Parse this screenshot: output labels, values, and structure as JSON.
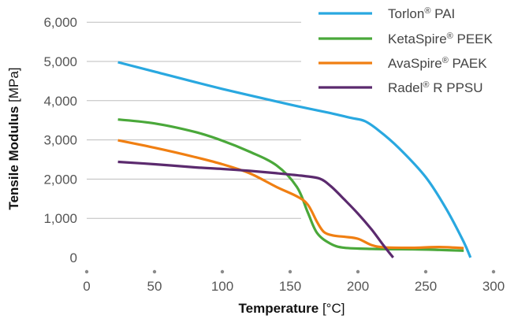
{
  "chart_data": {
    "type": "line",
    "title": "",
    "xlabel": {
      "bold": "Temperature",
      "unit": "[°C]"
    },
    "ylabel": {
      "bold": "Tensile Modulus",
      "unit": "[MPa]"
    },
    "xlim": [
      0,
      300
    ],
    "ylim": [
      0,
      6000
    ],
    "x_ticks": [
      "0",
      "50",
      "100",
      "150",
      "200",
      "250",
      "300"
    ],
    "y_ticks": [
      "0",
      "1,000",
      "2,000",
      "3,000",
      "4,000",
      "5,000",
      "6,000"
    ],
    "grid": "horizontal",
    "legend_position": "top-right",
    "series": [
      {
        "name": "Torlon® PAI",
        "brand": "Torlon",
        "grade": "PAI",
        "color": "#29a8e0",
        "points": [
          [
            23,
            4980
          ],
          [
            50,
            4740
          ],
          [
            100,
            4300
          ],
          [
            150,
            3900
          ],
          [
            180,
            3680
          ],
          [
            195,
            3560
          ],
          [
            205,
            3480
          ],
          [
            215,
            3250
          ],
          [
            230,
            2800
          ],
          [
            250,
            2050
          ],
          [
            265,
            1250
          ],
          [
            278,
            400
          ],
          [
            283,
            0
          ]
        ]
      },
      {
        "name": "KetaSpire® PEEK",
        "brand": "KetaSpire",
        "grade": "PEEK",
        "color": "#4aa83a",
        "points": [
          [
            23,
            3520
          ],
          [
            50,
            3420
          ],
          [
            80,
            3200
          ],
          [
            100,
            2980
          ],
          [
            120,
            2700
          ],
          [
            140,
            2350
          ],
          [
            155,
            1800
          ],
          [
            163,
            1150
          ],
          [
            170,
            620
          ],
          [
            180,
            350
          ],
          [
            190,
            250
          ],
          [
            210,
            220
          ],
          [
            240,
            210
          ],
          [
            260,
            195
          ],
          [
            278,
            175
          ]
        ]
      },
      {
        "name": "AvaSpire® PAEK",
        "brand": "AvaSpire",
        "grade": "PAEK",
        "color": "#f07f12",
        "points": [
          [
            23,
            2990
          ],
          [
            50,
            2800
          ],
          [
            80,
            2560
          ],
          [
            100,
            2380
          ],
          [
            120,
            2150
          ],
          [
            140,
            1800
          ],
          [
            155,
            1560
          ],
          [
            163,
            1350
          ],
          [
            170,
            900
          ],
          [
            175,
            650
          ],
          [
            182,
            560
          ],
          [
            190,
            530
          ],
          [
            200,
            480
          ],
          [
            210,
            320
          ],
          [
            220,
            260
          ],
          [
            240,
            250
          ],
          [
            260,
            270
          ],
          [
            278,
            240
          ]
        ]
      },
      {
        "name": "Radel® R PPSU",
        "brand": "Radel",
        "grade": "R PPSU",
        "color": "#5b2a6e",
        "points": [
          [
            23,
            2440
          ],
          [
            50,
            2380
          ],
          [
            80,
            2300
          ],
          [
            100,
            2260
          ],
          [
            120,
            2210
          ],
          [
            140,
            2150
          ],
          [
            160,
            2080
          ],
          [
            172,
            2010
          ],
          [
            180,
            1820
          ],
          [
            190,
            1480
          ],
          [
            200,
            1120
          ],
          [
            210,
            720
          ],
          [
            218,
            350
          ],
          [
            226,
            0
          ]
        ]
      }
    ]
  }
}
